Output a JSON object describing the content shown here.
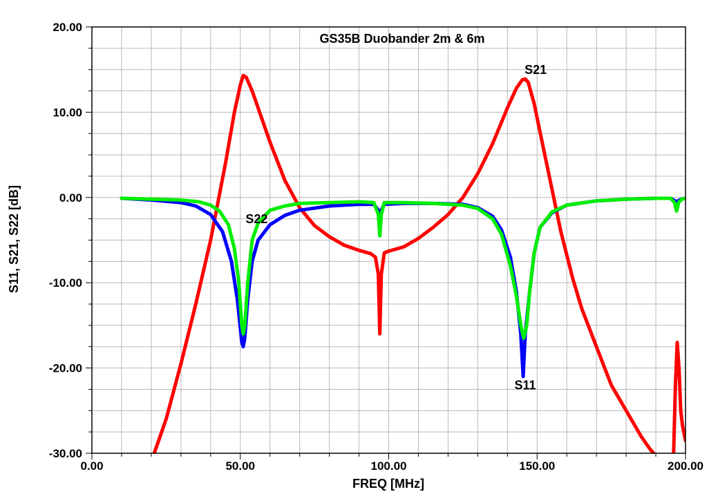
{
  "chart_data": {
    "type": "line",
    "title": "GS35B Duobander 2m & 6m",
    "xlabel": "FREQ [MHz]",
    "ylabel": "S11, S21, S22 [dB]",
    "xlim": [
      0,
      200
    ],
    "ylim": [
      -30,
      20
    ],
    "grid": true,
    "x_ticks": [
      "0.00",
      "50.00",
      "100.00",
      "150.00",
      "200.00"
    ],
    "y_ticks": [
      "20.00",
      "10.00",
      "0.00",
      "-10.00",
      "-20.00",
      "-30.00"
    ],
    "annotations": [
      {
        "text": "S21",
        "x": 149.5,
        "y": 14.5
      },
      {
        "text": "S22",
        "x": 55.5,
        "y": -3
      },
      {
        "text": "S11",
        "x": 146,
        "y": -22.5
      }
    ],
    "series": [
      {
        "name": "S21",
        "color": "#ff0000",
        "x": [
          21,
          25,
          30,
          35,
          40,
          45,
          48,
          50,
          51,
          52,
          54,
          57,
          60,
          65,
          70,
          75,
          80,
          85,
          90,
          94,
          95.5,
          96.5,
          97,
          97.5,
          98.5,
          100,
          105,
          110,
          115,
          120,
          125,
          130,
          135,
          140,
          143,
          145,
          146,
          147,
          149,
          152,
          155,
          158,
          162,
          165,
          170,
          175,
          180,
          185,
          188,
          189.3
        ],
        "values": [
          -30,
          -26,
          -19.5,
          -12.5,
          -5,
          4,
          10,
          13.2,
          14.3,
          14.1,
          12.5,
          9.5,
          6.5,
          2,
          -1.2,
          -3.3,
          -4.6,
          -5.6,
          -6.2,
          -6.6,
          -7,
          -9,
          -16,
          -9,
          -6.5,
          -6.3,
          -5.8,
          -4.8,
          -3.5,
          -2,
          0,
          2.8,
          6.3,
          10.5,
          12.8,
          13.8,
          13.9,
          13.5,
          11,
          6,
          1,
          -4,
          -9.5,
          -13,
          -17.5,
          -22,
          -25,
          -28,
          -29.5,
          -30
        ]
      },
      {
        "name": "S21",
        "color": "#ff0000",
        "x": [
          196,
          196.6,
          197.2,
          197.8,
          198.4,
          199,
          200
        ],
        "values": [
          -30,
          -22,
          -17,
          -20,
          -25,
          -26.8,
          -28.5
        ]
      },
      {
        "name": "S11",
        "color": "#0000ff",
        "x": [
          10,
          20,
          30,
          35,
          40,
          44,
          47,
          49,
          50.5,
          51,
          51.5,
          52.5,
          54,
          56,
          60,
          65,
          70,
          80,
          90,
          95,
          96.5,
          97,
          97.5,
          98.5,
          105,
          115,
          125,
          130,
          135,
          138,
          141,
          143,
          144.5,
          145.3,
          146,
          147.5,
          149,
          151,
          155,
          160,
          170,
          180,
          190,
          195,
          196.5,
          197,
          197.5,
          198.5,
          200
        ],
        "values": [
          -0.1,
          -0.3,
          -0.6,
          -1,
          -2,
          -4,
          -7.5,
          -12,
          -17,
          -17.5,
          -16.5,
          -12,
          -7.5,
          -5,
          -3.2,
          -2.1,
          -1.5,
          -1,
          -0.8,
          -0.8,
          -1.5,
          -3,
          -1.5,
          -0.8,
          -0.7,
          -0.7,
          -0.8,
          -1.2,
          -2.2,
          -3.8,
          -7,
          -11,
          -16,
          -21,
          -16,
          -11,
          -6.5,
          -3.5,
          -1.8,
          -0.9,
          -0.4,
          -0.2,
          -0.1,
          -0.1,
          -0.4,
          -1.3,
          -0.4,
          -0.2,
          -0.1
        ]
      },
      {
        "name": "S22",
        "color": "#00ee00",
        "x": [
          10,
          30,
          36,
          40,
          43,
          46,
          48,
          49.5,
          50.5,
          51,
          51.5,
          52.5,
          54,
          56,
          60,
          65,
          70,
          80,
          90,
          95,
          96.5,
          97,
          97.5,
          98.5,
          105,
          115,
          125,
          130,
          135,
          138,
          141,
          143,
          144.5,
          145.5,
          146.5,
          147.5,
          149,
          151,
          155,
          160,
          170,
          180,
          190,
          195,
          196.3,
          197,
          197.7,
          198.7,
          200
        ],
        "values": [
          -0.1,
          -0.3,
          -0.5,
          -0.9,
          -1.6,
          -3.2,
          -6,
          -10,
          -15,
          -16,
          -15,
          -10,
          -5,
          -3,
          -1.5,
          -1,
          -0.7,
          -0.6,
          -0.5,
          -0.6,
          -2,
          -4.5,
          -2,
          -0.6,
          -0.6,
          -0.7,
          -0.9,
          -1.3,
          -2.5,
          -4.3,
          -8,
          -11.5,
          -15,
          -16.5,
          -15,
          -11,
          -6.5,
          -3.5,
          -1.7,
          -0.9,
          -0.4,
          -0.2,
          -0.1,
          -0.1,
          -0.6,
          -1.6,
          -0.6,
          -0.2,
          -0.1
        ]
      }
    ]
  }
}
